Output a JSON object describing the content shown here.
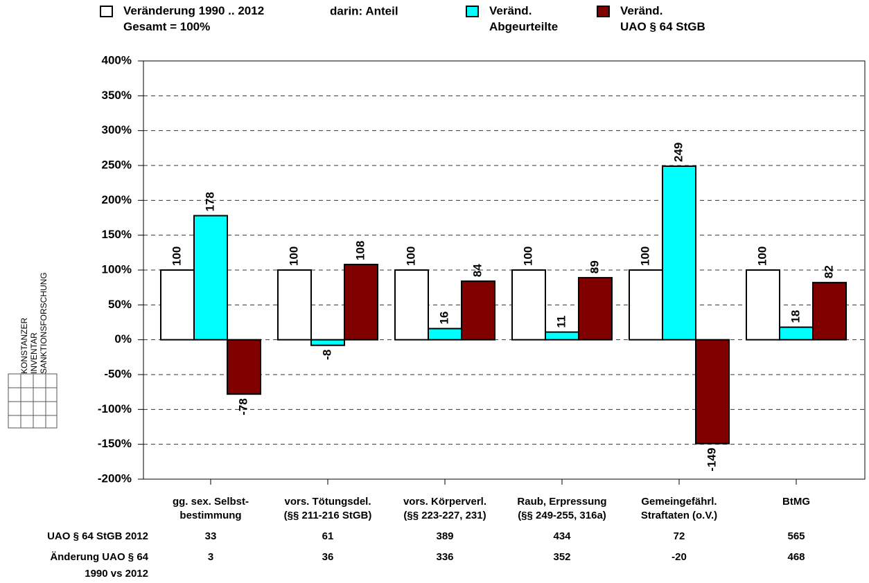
{
  "chart_data": {
    "type": "bar",
    "legend_note": "darin: Anteil",
    "categories": [
      "gg. sex. Selbst-\nbestimmung",
      "vors. Tötungsdel.\n(§§ 211-216 StGB)",
      "vors. Körperverl.\n(§§ 223-227, 231)",
      "Raub, Erpressung\n(§§ 249-255, 316a)",
      "Gemeingefährl.\nStraftaten (o.V.)",
      "BtMG"
    ],
    "series": [
      {
        "name": "Veränderung 1990 .. 2012\nGesamt = 100%",
        "color": "#ffffff",
        "values": [
          100,
          100,
          100,
          100,
          100,
          100
        ]
      },
      {
        "name": "Veränd.\nAbgeurteilte",
        "color": "#00ffff",
        "values": [
          178,
          -8,
          16,
          11,
          249,
          18
        ]
      },
      {
        "name": "Veränd.\nUAO § 64 StGB",
        "color": "#800000",
        "values": [
          -78,
          108,
          84,
          89,
          -149,
          82
        ]
      }
    ],
    "ylim": [
      -200,
      400
    ],
    "yticks": [
      {
        "value": -200,
        "label": "-200%"
      },
      {
        "value": -150,
        "label": "-150%"
      },
      {
        "value": -100,
        "label": "-100%"
      },
      {
        "value": -50,
        "label": "-50%"
      },
      {
        "value": 0,
        "label": "0%"
      },
      {
        "value": 50,
        "label": "50%"
      },
      {
        "value": 100,
        "label": "100%"
      },
      {
        "value": 150,
        "label": "150%"
      },
      {
        "value": 200,
        "label": "200%"
      },
      {
        "value": 250,
        "label": "250%"
      },
      {
        "value": 300,
        "label": "300%"
      },
      {
        "value": 350,
        "label": "350%"
      },
      {
        "value": 400,
        "label": "400%"
      }
    ],
    "grid": true,
    "table": [
      {
        "label": "UAO § 64 StGB 2012",
        "values": [
          33,
          61,
          389,
          434,
          72,
          565
        ]
      },
      {
        "label": "Änderung UAO § 64\n1990 vs 2012",
        "values": [
          3,
          36,
          336,
          352,
          -20,
          468
        ]
      }
    ],
    "logo": [
      "KONSTANZER",
      "INVENTAR",
      "SANKTIONSFORSCHUNG"
    ]
  }
}
